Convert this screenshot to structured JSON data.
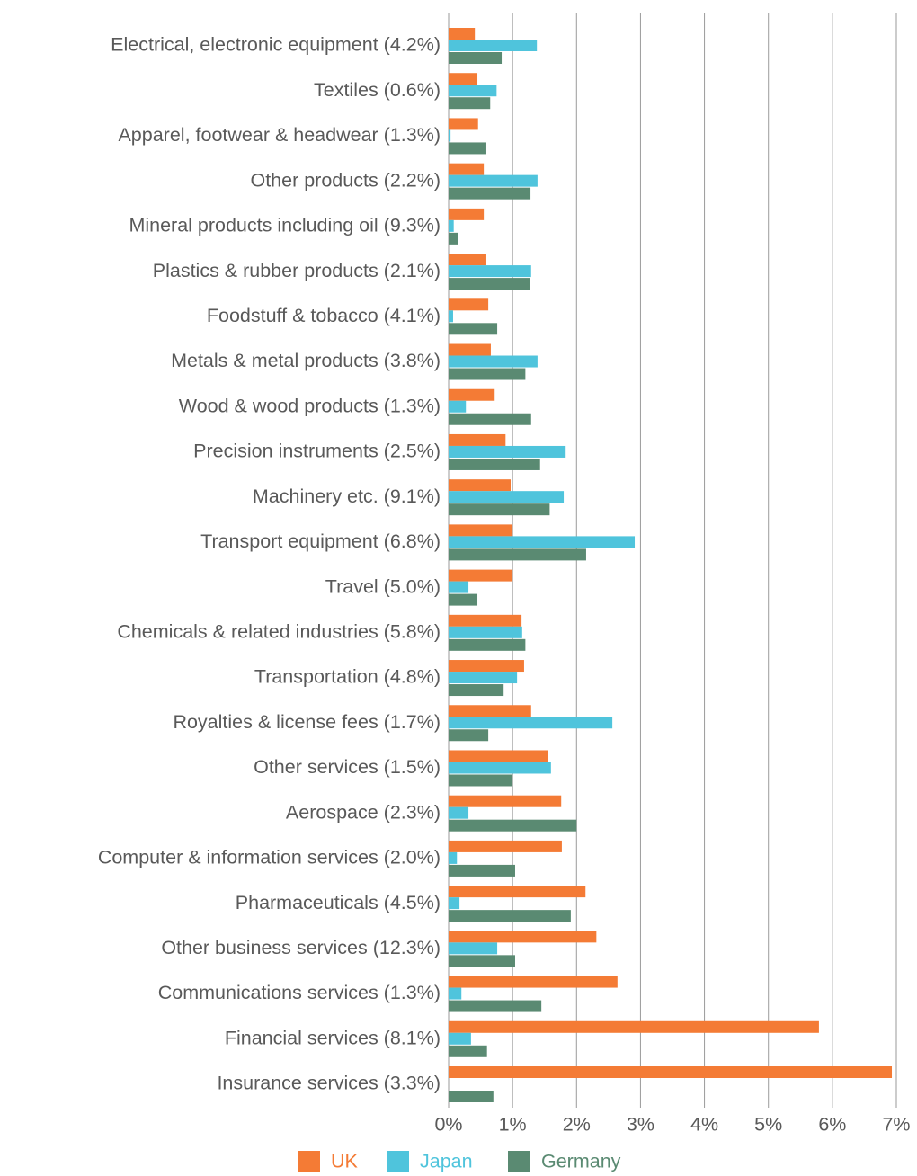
{
  "chart_data": {
    "type": "bar",
    "orientation": "horizontal",
    "categories": [
      "Electrical, electronic equipment (4.2%)",
      "Textiles (0.6%)",
      "Apparel, footwear & headwear (1.3%)",
      "Other products (2.2%)",
      "Mineral products including oil (9.3%)",
      "Plastics & rubber products (2.1%)",
      "Foodstuff & tobacco (4.1%)",
      "Metals & metal products (3.8%)",
      "Wood & wood products (1.3%)",
      "Precision instruments (2.5%)",
      "Machinery etc. (9.1%)",
      "Transport equipment (6.8%)",
      "Travel (5.0%)",
      "Chemicals & related industries (5.8%)",
      "Transportation (4.8%)",
      "Royalties & license fees (1.7%)",
      "Other services (1.5%)",
      "Aerospace (2.3%)",
      "Computer & information services (2.0%)",
      "Pharmaceuticals (4.5%)",
      "Other business services (12.3%)",
      "Communications services (1.3%)",
      "Financial services (8.1%)",
      "Insurance services (3.3%)"
    ],
    "series": [
      {
        "name": "UK",
        "color": "#f47b35",
        "values": [
          0.41,
          0.45,
          0.46,
          0.55,
          0.55,
          0.59,
          0.62,
          0.66,
          0.72,
          0.89,
          0.97,
          1.0,
          1.0,
          1.14,
          1.18,
          1.29,
          1.55,
          1.76,
          1.77,
          2.14,
          2.31,
          2.64,
          5.79,
          6.93
        ]
      },
      {
        "name": "Japan",
        "color": "#4fc4dc",
        "values": [
          1.38,
          0.75,
          0.03,
          1.39,
          0.08,
          1.29,
          0.07,
          1.39,
          0.27,
          1.83,
          1.8,
          2.91,
          0.31,
          1.15,
          1.07,
          2.56,
          1.6,
          0.31,
          0.13,
          0.17,
          0.76,
          0.2,
          0.35,
          0
        ]
      },
      {
        "name": "Germany",
        "color": "#5a8a72",
        "values": [
          0.83,
          0.65,
          0.59,
          1.28,
          0.15,
          1.27,
          0.76,
          1.2,
          1.29,
          1.43,
          1.58,
          2.15,
          0.45,
          1.2,
          0.86,
          0.62,
          1.0,
          2.0,
          1.04,
          1.91,
          1.04,
          1.45,
          0.6,
          0.7
        ]
      }
    ],
    "xlim": [
      0,
      7
    ],
    "xticks": [
      {
        "value": 0,
        "label": "0%"
      },
      {
        "value": 1,
        "label": "1%"
      },
      {
        "value": 2,
        "label": "2%"
      },
      {
        "value": 3,
        "label": "3%"
      },
      {
        "value": 4,
        "label": "4%"
      },
      {
        "value": 5,
        "label": "5%"
      },
      {
        "value": 6,
        "label": "6%"
      },
      {
        "value": 7,
        "label": "7%"
      }
    ],
    "grid": true,
    "legend": "bottom"
  }
}
